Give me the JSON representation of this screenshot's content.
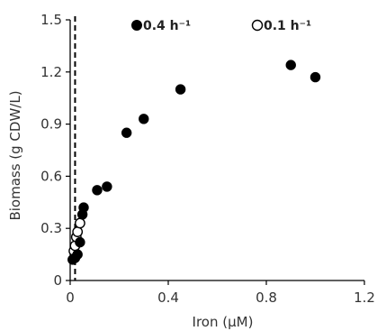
{
  "chart_data": {
    "type": "scatter",
    "xlabel": "Iron (μM)",
    "ylabel": "Biomass (g CDW/L)",
    "xlim": [
      0,
      1.2
    ],
    "ylim": [
      0,
      1.5
    ],
    "x_ticks": [
      "0",
      "0.4",
      "0.8",
      "1.2"
    ],
    "y_ticks": [
      "0",
      "0.3",
      "0.6",
      "0.9",
      "1.2",
      "1.5"
    ],
    "grid": false,
    "legend_position": "top",
    "reference_line": {
      "x": 0.02,
      "style": "dashed"
    },
    "series": [
      {
        "name": "0.4 h⁻¹",
        "marker": "filled-circle",
        "color": "#000000",
        "points": [
          {
            "x": 0.01,
            "y": 0.12
          },
          {
            "x": 0.02,
            "y": 0.13
          },
          {
            "x": 0.03,
            "y": 0.15
          },
          {
            "x": 0.04,
            "y": 0.22
          },
          {
            "x": 0.05,
            "y": 0.38
          },
          {
            "x": 0.055,
            "y": 0.42
          },
          {
            "x": 0.11,
            "y": 0.52
          },
          {
            "x": 0.15,
            "y": 0.54
          },
          {
            "x": 0.23,
            "y": 0.85
          },
          {
            "x": 0.3,
            "y": 0.93
          },
          {
            "x": 0.45,
            "y": 1.1
          },
          {
            "x": 0.9,
            "y": 1.24
          },
          {
            "x": 1.0,
            "y": 1.17
          }
        ]
      },
      {
        "name": "0.1 h⁻¹",
        "marker": "open-circle",
        "color": "#000000",
        "points": [
          {
            "x": 0.015,
            "y": 0.17
          },
          {
            "x": 0.02,
            "y": 0.2
          },
          {
            "x": 0.025,
            "y": 0.25
          },
          {
            "x": 0.03,
            "y": 0.28
          },
          {
            "x": 0.04,
            "y": 0.33
          }
        ]
      }
    ]
  }
}
